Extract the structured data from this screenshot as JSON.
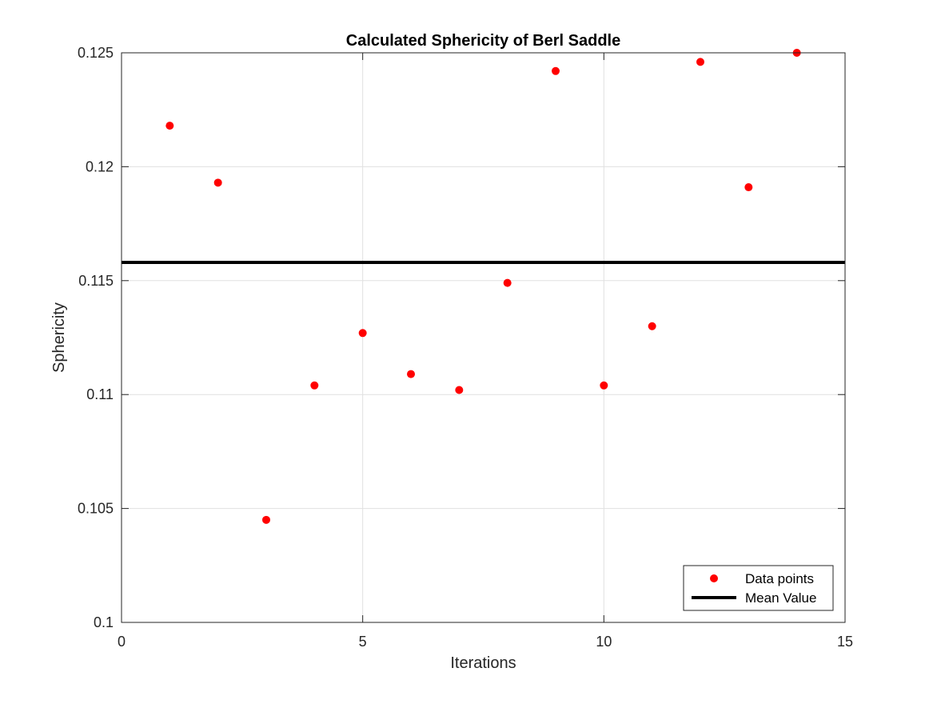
{
  "chart_data": {
    "type": "scatter",
    "title": "Calculated Sphericity of Berl Saddle",
    "xlabel": "Iterations",
    "ylabel": "Sphericity",
    "xlim": [
      0,
      15
    ],
    "ylim": [
      0.1,
      0.125
    ],
    "xticks": [
      0,
      5,
      10,
      15
    ],
    "xtick_labels": [
      "0",
      "5",
      "10",
      "15"
    ],
    "yticks": [
      0.1,
      0.105,
      0.11,
      0.115,
      0.12,
      0.125
    ],
    "ytick_labels": [
      "0.1",
      "0.105",
      "0.11",
      "0.115",
      "0.12",
      "0.125"
    ],
    "grid": true,
    "legend_position": "bottom-right",
    "series": [
      {
        "name": "Data points",
        "kind": "scatter",
        "color": "#ff0000",
        "x": [
          1,
          2,
          3,
          4,
          5,
          6,
          7,
          8,
          9,
          10,
          11,
          12,
          13,
          14
        ],
        "y": [
          0.1218,
          0.1193,
          0.1045,
          0.1104,
          0.1127,
          0.1109,
          0.1102,
          0.1149,
          0.1242,
          0.1104,
          0.113,
          0.1246,
          0.1191,
          0.125
        ]
      },
      {
        "name": "Mean Value",
        "kind": "hline",
        "color": "#000000",
        "y": 0.1158
      }
    ]
  }
}
